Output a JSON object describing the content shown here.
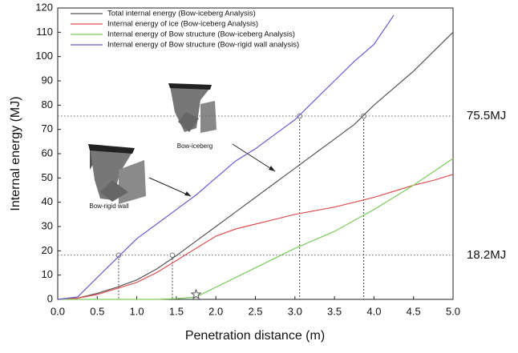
{
  "chart_data": {
    "type": "line",
    "xlabel": "Penetration distance (m)",
    "ylabel": "Internal energy (MJ)",
    "x": [
      0,
      0.25,
      0.5,
      0.75,
      1.0,
      1.25,
      1.5,
      1.75,
      2.0,
      2.25,
      2.5,
      2.75,
      3.0,
      3.25,
      3.5,
      3.75,
      4.0,
      4.25,
      4.5,
      4.75,
      5.0
    ],
    "series": [
      {
        "name": "Total internal energy (Bow-iceberg Analysis)",
        "color": "#555555",
        "values": [
          0,
          0.5,
          2.5,
          5,
          8,
          12.5,
          18,
          24,
          30,
          36,
          42,
          48,
          54,
          60,
          66,
          72,
          80,
          87,
          94,
          102,
          110
        ]
      },
      {
        "name": "Internal energy of ice (Bow-iceberg Analysis)",
        "color": "#e05050",
        "values": [
          0,
          0.5,
          2,
          4.5,
          7,
          11,
          16,
          21,
          26,
          29,
          31,
          33,
          35,
          36.5,
          38,
          40,
          42,
          44.5,
          47,
          49,
          51.5
        ]
      },
      {
        "name": "Internal energy of Bow structure (Bow-iceberg Analysis)",
        "color": "#7ccc5c",
        "values": [
          0,
          0,
          0,
          0,
          0,
          0,
          0.3,
          1,
          5,
          9,
          13,
          17,
          21,
          24.5,
          28,
          32.5,
          37,
          42,
          47,
          52.5,
          58
        ]
      },
      {
        "name": "Internal energy of Bow structure (Bow-rigid wall analysis)",
        "color": "#6a5acd",
        "values": [
          0,
          1,
          9,
          17,
          25,
          31,
          37,
          43,
          50,
          57,
          62,
          68,
          74,
          82,
          90,
          98,
          105,
          117,
          null,
          null,
          null
        ]
      }
    ],
    "xlim": [
      0,
      5
    ],
    "ylim": [
      0,
      120
    ],
    "xticks": [
      {
        "value": 0,
        "label": "0.0"
      },
      0.5,
      {
        "value": 1,
        "label": "1.0"
      },
      1.5,
      {
        "value": 2,
        "label": "2.0"
      },
      2.5,
      {
        "value": 3,
        "label": "3.0"
      },
      3.5,
      {
        "value": 4,
        "label": "4.0"
      },
      4.5,
      {
        "value": 5,
        "label": "5.0"
      }
    ],
    "yticks": [
      0,
      10,
      20,
      30,
      40,
      50,
      60,
      70,
      80,
      90,
      100,
      110,
      120
    ],
    "reference_lines": [
      {
        "y": 75.5,
        "label": "75.5MJ"
      },
      {
        "y": 18.2,
        "label": "18.2MJ"
      }
    ],
    "markers": [
      {
        "x": 0.77,
        "y": 18.2
      },
      {
        "x": 1.45,
        "y": 18.2
      },
      {
        "x": 3.06,
        "y": 75.5
      },
      {
        "x": 3.87,
        "y": 75.5
      }
    ],
    "star": {
      "x": 1.75,
      "y": 2
    },
    "annotations": [
      "Bow-iceberg",
      "Bow-rigid wall"
    ]
  }
}
